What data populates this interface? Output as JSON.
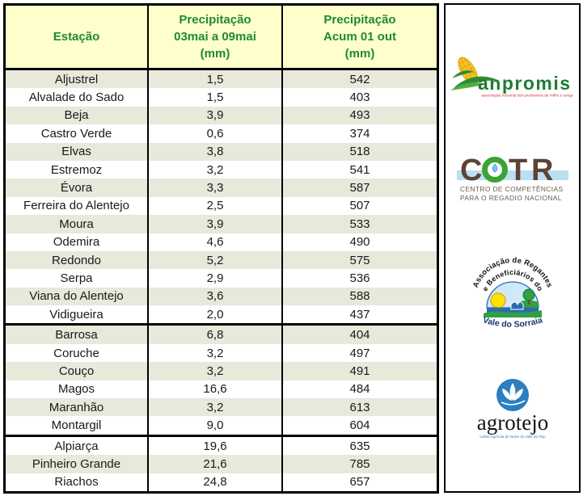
{
  "colors": {
    "header_bg": "#FFFFCB",
    "header_text": "#1F8B2C",
    "row_shade": "#E8E8DB",
    "table_border": "#000000",
    "body_text": "#1A1A1A",
    "anpromis_green": "#1E7C34",
    "anpromis_yellow": "#F4C81F",
    "anpromis_red": "#CC3322",
    "cotr_brown": "#5C4435",
    "cotr_green": "#3AA437",
    "cotr_band_blue": "#BBDFF2",
    "cotr_drop_blue": "#7FC4EC",
    "sorraia_navy": "#173A6B",
    "sorraia_sky": "#CFE9F8",
    "sorraia_green": "#2FA043",
    "sorraia_water": "#2B6CB0",
    "sorraia_sun": "#F7E400",
    "agrotejo_blue": "#2C7EC0"
  },
  "table": {
    "columns": [
      {
        "lines": [
          "Estação"
        ]
      },
      {
        "lines": [
          "Precipitação",
          "03mai a 09mai",
          "(mm)"
        ]
      },
      {
        "lines": [
          "Precipitação",
          "Acum 01 out",
          "(mm)"
        ]
      }
    ],
    "groups": [
      {
        "rows": [
          {
            "station": "Aljustrel",
            "precip_week": "1,5",
            "precip_accum": "542",
            "shaded": true
          },
          {
            "station": "Alvalade do Sado",
            "precip_week": "1,5",
            "precip_accum": "403",
            "shaded": false
          },
          {
            "station": "Beja",
            "precip_week": "3,9",
            "precip_accum": "493",
            "shaded": true
          },
          {
            "station": "Castro Verde",
            "precip_week": "0,6",
            "precip_accum": "374",
            "shaded": false
          },
          {
            "station": "Elvas",
            "precip_week": "3,8",
            "precip_accum": "518",
            "shaded": true
          },
          {
            "station": "Estremoz",
            "precip_week": "3,2",
            "precip_accum": "541",
            "shaded": false
          },
          {
            "station": "Évora",
            "precip_week": "3,3",
            "precip_accum": "587",
            "shaded": true
          },
          {
            "station": "Ferreira do Alentejo",
            "precip_week": "2,5",
            "precip_accum": "507",
            "shaded": false
          },
          {
            "station": "Moura",
            "precip_week": "3,9",
            "precip_accum": "533",
            "shaded": true
          },
          {
            "station": "Odemira",
            "precip_week": "4,6",
            "precip_accum": "490",
            "shaded": false
          },
          {
            "station": "Redondo",
            "precip_week": "5,2",
            "precip_accum": "575",
            "shaded": true
          },
          {
            "station": "Serpa",
            "precip_week": "2,9",
            "precip_accum": "536",
            "shaded": false
          },
          {
            "station": "Viana do Alentejo",
            "precip_week": "3,6",
            "precip_accum": "588",
            "shaded": true
          },
          {
            "station": "Vidigueira",
            "precip_week": "2,0",
            "precip_accum": "437",
            "shaded": false
          }
        ]
      },
      {
        "rows": [
          {
            "station": "Barrosa",
            "precip_week": "6,8",
            "precip_accum": "404",
            "shaded": true
          },
          {
            "station": "Coruche",
            "precip_week": "3,2",
            "precip_accum": "497",
            "shaded": false
          },
          {
            "station": "Couço",
            "precip_week": "3,2",
            "precip_accum": "491",
            "shaded": true
          },
          {
            "station": "Magos",
            "precip_week": "16,6",
            "precip_accum": "484",
            "shaded": false
          },
          {
            "station": "Maranhão",
            "precip_week": "3,2",
            "precip_accum": "613",
            "shaded": true
          },
          {
            "station": "Montargil",
            "precip_week": "9,0",
            "precip_accum": "604",
            "shaded": false
          }
        ]
      },
      {
        "rows": [
          {
            "station": "Alpiarça",
            "precip_week": "19,6",
            "precip_accum": "635",
            "shaded": false
          },
          {
            "station": "Pinheiro Grande",
            "precip_week": "21,6",
            "precip_accum": "785",
            "shaded": true
          },
          {
            "station": "Riachos",
            "precip_week": "24,8",
            "precip_accum": "657",
            "shaded": false
          }
        ]
      }
    ]
  },
  "logos": {
    "anpromis": {
      "wordmark": "anpromis",
      "subtitle": "associação nacional dos produtores de milho e sorgo"
    },
    "cotr": {
      "word": "COTR",
      "letter_c": "C",
      "letter_t": "T",
      "letter_r": "R",
      "subtitle_line1": "CENTRO DE COMPETÊNCIAS",
      "subtitle_line2": "PARA O REGADIO NACIONAL"
    },
    "sorraia": {
      "arc_line1": "Associação de Regantes",
      "arc_line2": "e Beneficiários do",
      "bottom_text": "Vale do Sorraia"
    },
    "agrotejo": {
      "wordmark": "agrotejo",
      "subtitle": "União Agrícola do Norte do Vale do Tejo"
    }
  }
}
